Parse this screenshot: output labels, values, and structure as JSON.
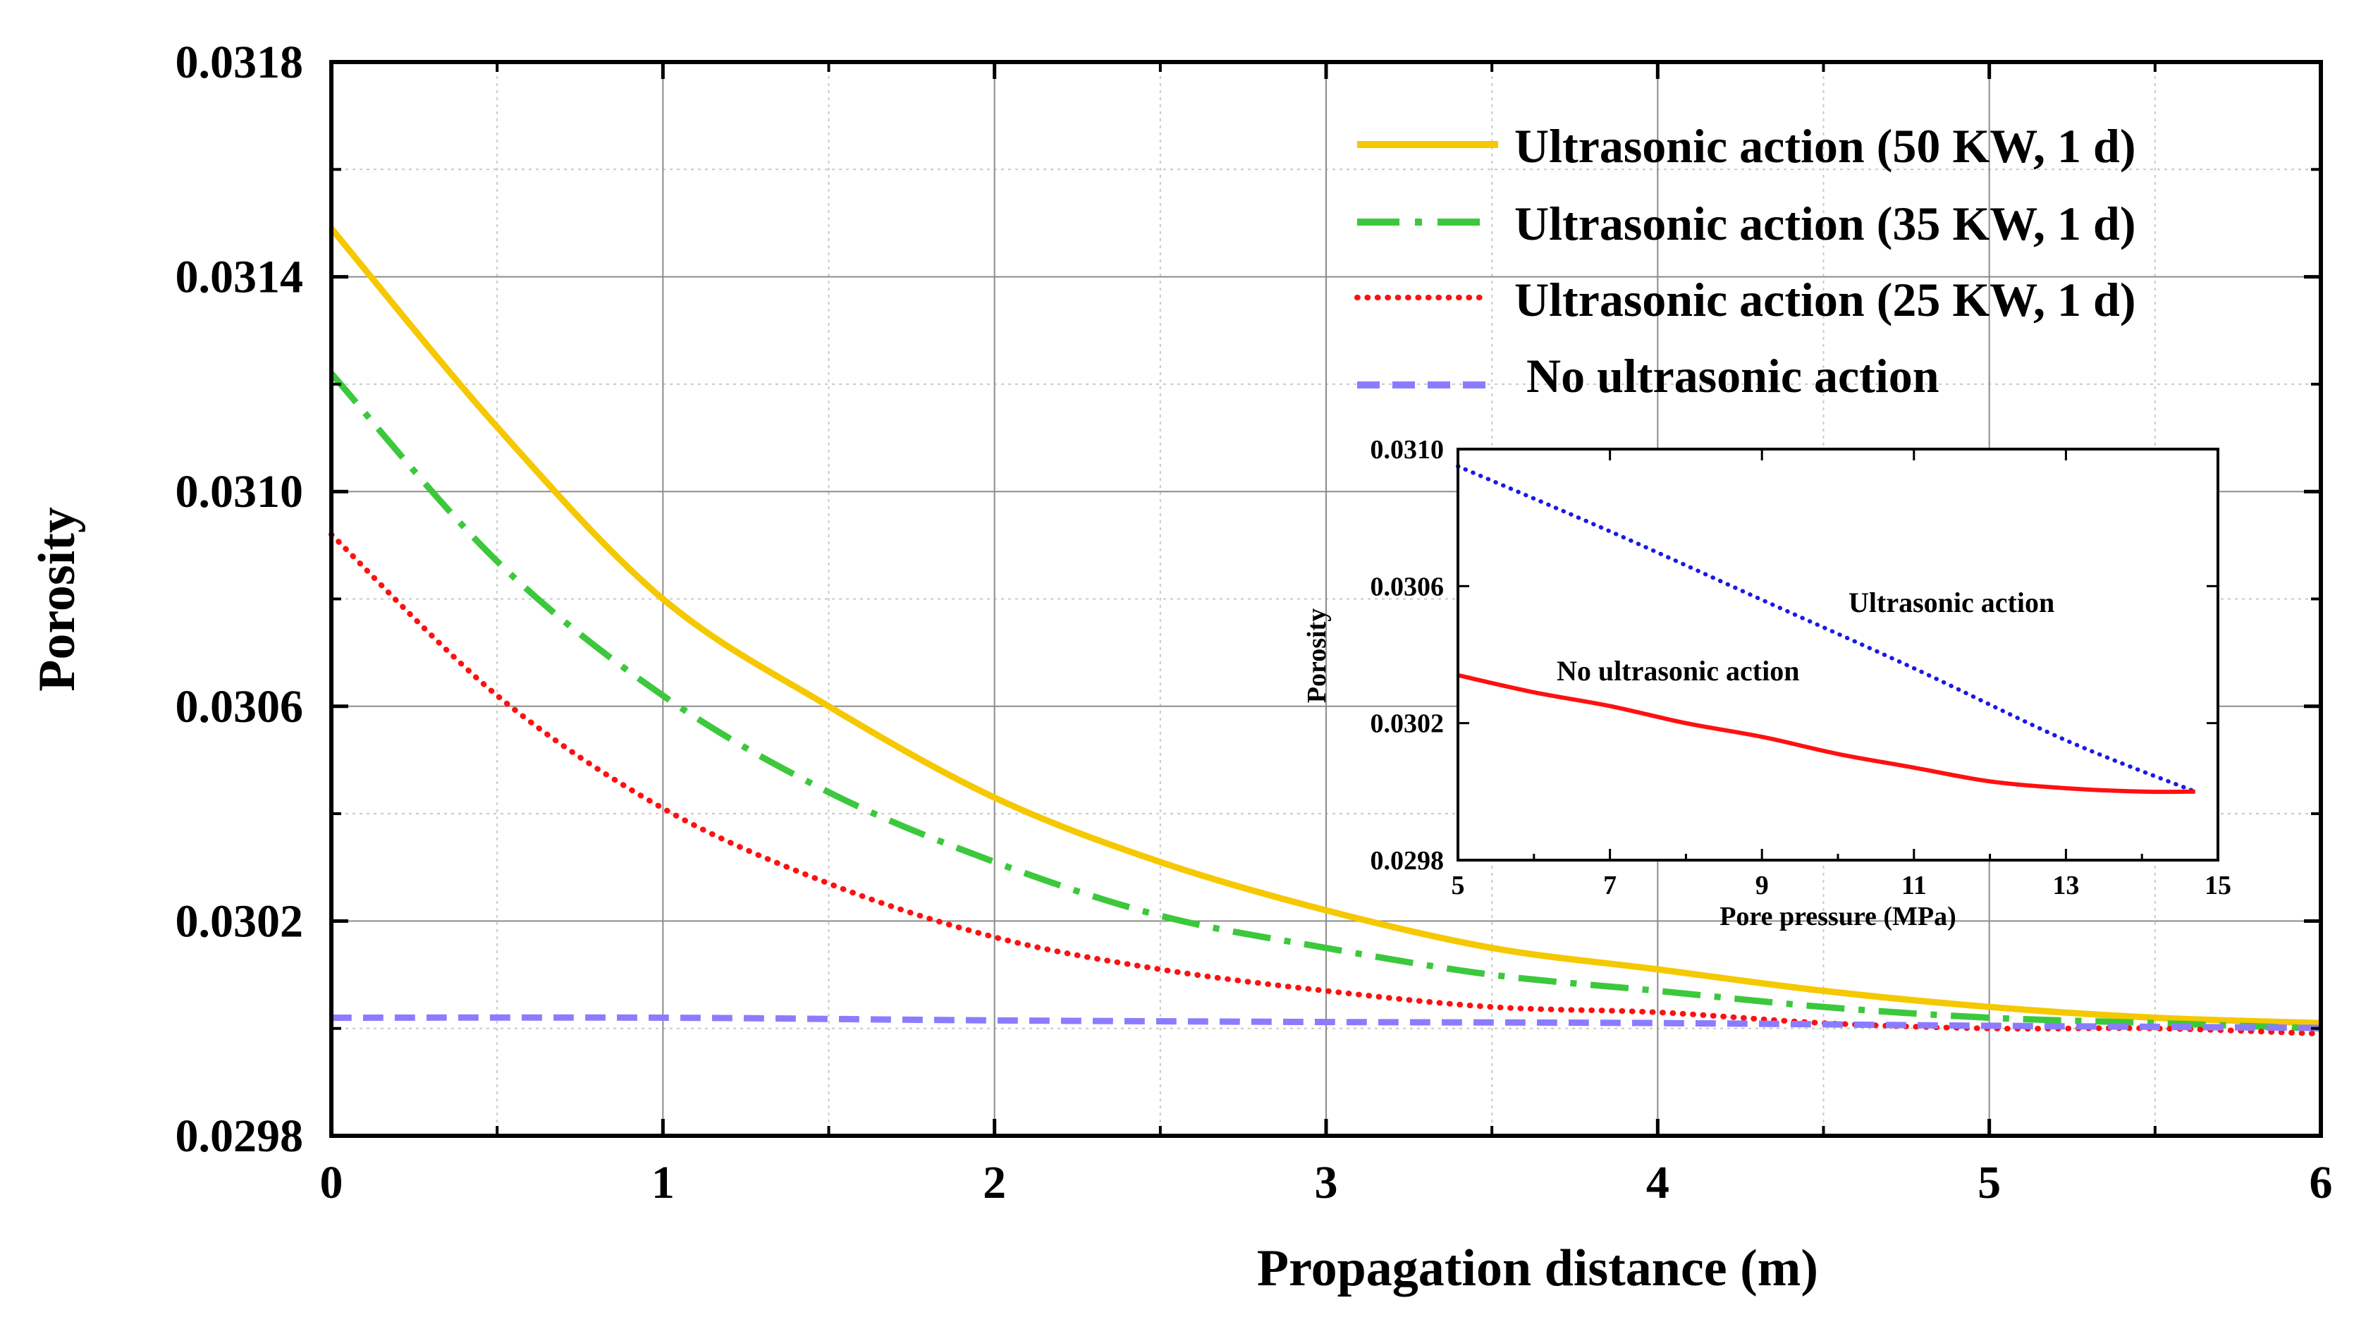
{
  "chart_data": [
    {
      "type": "line",
      "xlabel": "Propagation distance (m)",
      "ylabel": "Porosity",
      "xlim": [
        0,
        6
      ],
      "ylim": [
        0.0298,
        0.0318
      ],
      "xticks": [
        0,
        1,
        2,
        3,
        4,
        5,
        6
      ],
      "xtick_labels": [
        "0",
        "1",
        "2",
        "3",
        "4",
        "5",
        "6"
      ],
      "yticks": [
        0.0298,
        0.0302,
        0.0306,
        0.031,
        0.0314,
        0.0318
      ],
      "ytick_labels": [
        "0.0298",
        "0.0302",
        "0.0306",
        "0.0310",
        "0.0314",
        "0.0318"
      ],
      "grid": true,
      "legend_position": "top-right",
      "series": [
        {
          "name": "Ultrasonic action (50 KW, 1 d)",
          "color": "#F5C800",
          "style": "solid",
          "x": [
            0,
            0.5,
            1,
            1.5,
            2,
            2.5,
            3,
            3.5,
            4,
            4.5,
            5,
            5.5,
            6
          ],
          "y": [
            0.03149,
            0.03112,
            0.0308,
            0.0306,
            0.03043,
            0.03031,
            0.03022,
            0.03015,
            0.03011,
            0.03007,
            0.03004,
            0.03002,
            0.03001
          ]
        },
        {
          "name": "Ultrasonic action (35 KW, 1 d)",
          "color": "#3CC83C",
          "style": "dashdot",
          "x": [
            0,
            0.5,
            1,
            1.5,
            2,
            2.5,
            3,
            3.5,
            4,
            4.5,
            5,
            5.5,
            6
          ],
          "y": [
            0.03122,
            0.03087,
            0.03062,
            0.03044,
            0.03031,
            0.03021,
            0.03015,
            0.0301,
            0.03007,
            0.03004,
            0.03002,
            0.03001,
            0.03
          ]
        },
        {
          "name": "Ultrasonic action (25 KW, 1 d)",
          "color": "#FF1010",
          "style": "dotted",
          "x": [
            0,
            0.5,
            1,
            1.5,
            2,
            2.5,
            3,
            3.5,
            4,
            4.5,
            5,
            5.5,
            6
          ],
          "y": [
            0.03092,
            0.03062,
            0.03041,
            0.03027,
            0.03017,
            0.03011,
            0.03007,
            0.03004,
            0.03003,
            0.03001,
            0.03,
            0.03,
            0.02999
          ]
        },
        {
          "name": "No ultrasonic action",
          "color": "#8B7CFF",
          "style": "dashed",
          "x": [
            0,
            1,
            2,
            3,
            4,
            5,
            6
          ],
          "y": [
            0.03002,
            0.03002,
            0.030015,
            0.030012,
            0.03001,
            0.030005,
            0.030001
          ]
        }
      ]
    },
    {
      "type": "line",
      "role": "inset",
      "xlabel": "Pore pressure (MPa)",
      "ylabel": "Porosity",
      "xlim": [
        5,
        15
      ],
      "ylim": [
        0.0298,
        0.031
      ],
      "xticks": [
        5,
        7,
        9,
        11,
        13,
        15
      ],
      "xtick_labels": [
        "5",
        "7",
        "9",
        "11",
        "13",
        "15"
      ],
      "yticks": [
        0.0298,
        0.0302,
        0.0306,
        0.031
      ],
      "ytick_labels": [
        "0.0298",
        "0.0302",
        "0.0306",
        "0.0310"
      ],
      "annotations": [
        "Ultrasonic action",
        "No ultrasonic action"
      ],
      "series": [
        {
          "name": "Ultrasonic action",
          "color": "#1A1AE6",
          "style": "dotted",
          "x": [
            5,
            7,
            9,
            11,
            13,
            14.7
          ],
          "y": [
            0.03095,
            0.03076,
            0.03056,
            0.03036,
            0.03015,
            0.03
          ]
        },
        {
          "name": "No ultrasonic action",
          "color": "#FF1010",
          "style": "solid",
          "x": [
            5,
            6,
            7,
            8,
            9,
            10,
            11,
            12,
            13,
            14,
            14.7
          ],
          "y": [
            0.03034,
            0.03029,
            0.03025,
            0.0302,
            0.03016,
            0.03011,
            0.03007,
            0.03003,
            0.03001,
            0.03,
            0.03
          ]
        }
      ]
    }
  ]
}
